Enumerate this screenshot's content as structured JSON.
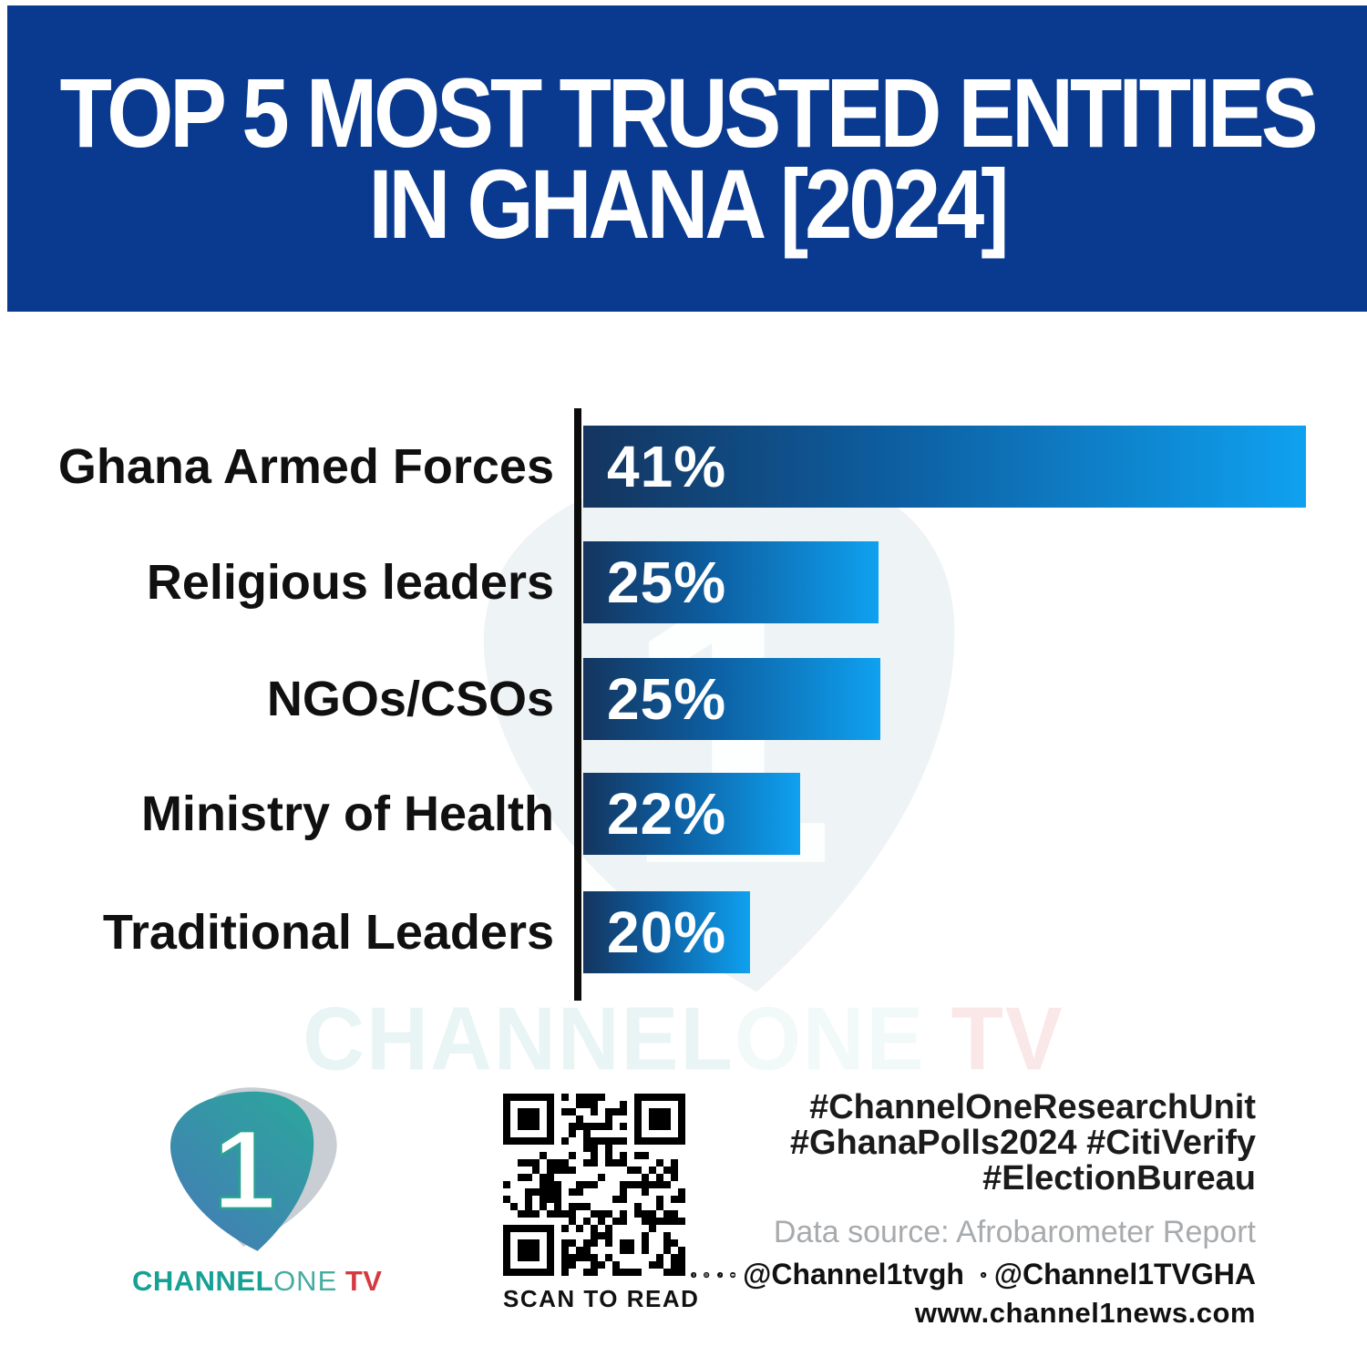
{
  "header": {
    "title_line1": "TOP 5 MOST TRUSTED ENTITIES",
    "title_line2": "IN GHANA [2024]",
    "background_color": "#0a3a8f",
    "text_color": "#ffffff"
  },
  "chart_data": {
    "type": "bar",
    "orientation": "horizontal",
    "title": "Top 5 most trusted entities in Ghana [2024]",
    "categories": [
      "Ghana Armed Forces",
      "Religious leaders",
      "NGOs/CSOs",
      "Ministry of Health",
      "Traditional Leaders"
    ],
    "values": [
      41,
      25,
      25,
      22,
      20
    ],
    "value_labels": [
      "41%",
      "25%",
      "25%",
      "22%",
      "20%"
    ],
    "unit": "%",
    "xlim": [
      0,
      41
    ],
    "grid": false,
    "legend": false,
    "bar_width_pct": [
      100,
      40.9,
      41.1,
      30.0,
      23.1
    ],
    "bar_gradient_left": "#14355f",
    "bar_gradient_mid": "#0d5d9f",
    "bar_gradient_right": "#0fa1f0",
    "axis_color": "#0b0b0b",
    "label_color": "#101010"
  },
  "watermark": {
    "part1": "CHANNEL",
    "part2": "ONE",
    "part3": "TV"
  },
  "footer": {
    "logo": {
      "wordmark_part1": "CHANNEL",
      "wordmark_part2": "ONE",
      "wordmark_part3": "TV",
      "teal": "#17a094",
      "red": "#d63a41"
    },
    "qr_caption": "SCAN TO READ",
    "hashtags": [
      "#ChannelOneResearchUnit",
      "#GhanaPolls2024 #CitiVerify",
      "#ElectionBureau"
    ],
    "data_source": "Data source: Afrobarometer Report",
    "social_icons": [
      "facebook-icon",
      "instagram-icon",
      "tiktok-icon",
      "youtube-icon",
      "x-icon"
    ],
    "social_handle_primary": "@Channel1tvgh",
    "social_handle_x": "@Channel1TVGHA",
    "website": "www.channel1news.com"
  }
}
